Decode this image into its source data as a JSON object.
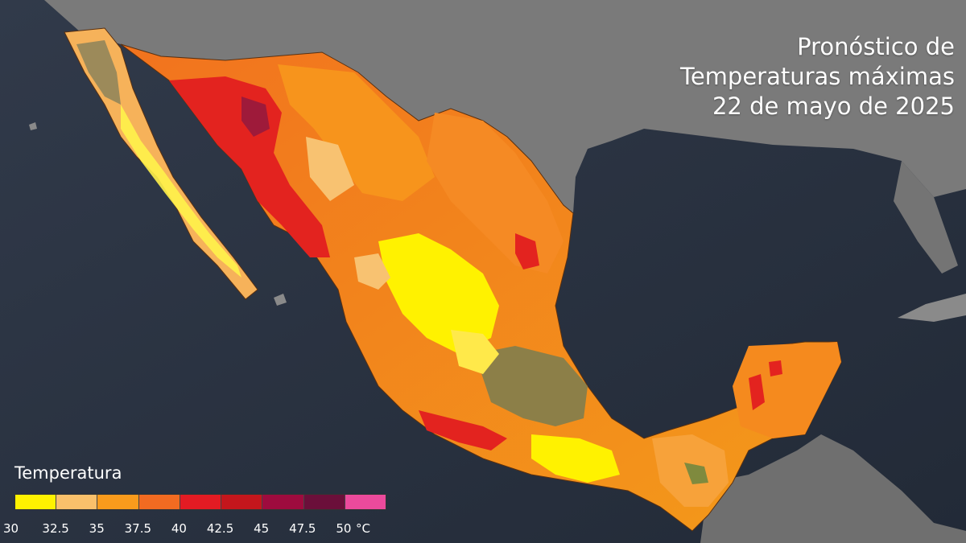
{
  "title": {
    "line1": "Pronóstico de",
    "line2": "Temperaturas máximas",
    "line3": "22 de mayo de 2025"
  },
  "legend": {
    "title": "Temperatura",
    "unit": "°C",
    "ticks": [
      "30",
      "32.5",
      "35",
      "37.5",
      "40",
      "42.5",
      "45",
      "47.5",
      "50"
    ],
    "colors": [
      "#fff200",
      "#f9c06b",
      "#f99b1c",
      "#f26b21",
      "#e31b23",
      "#c4161c",
      "#9e0b3e",
      "#6b0f3a",
      "#ec4a9c"
    ]
  },
  "map": {
    "region": "México",
    "ocean_color": "#2b3240",
    "land_outside_color": "#7d7d7d"
  }
}
